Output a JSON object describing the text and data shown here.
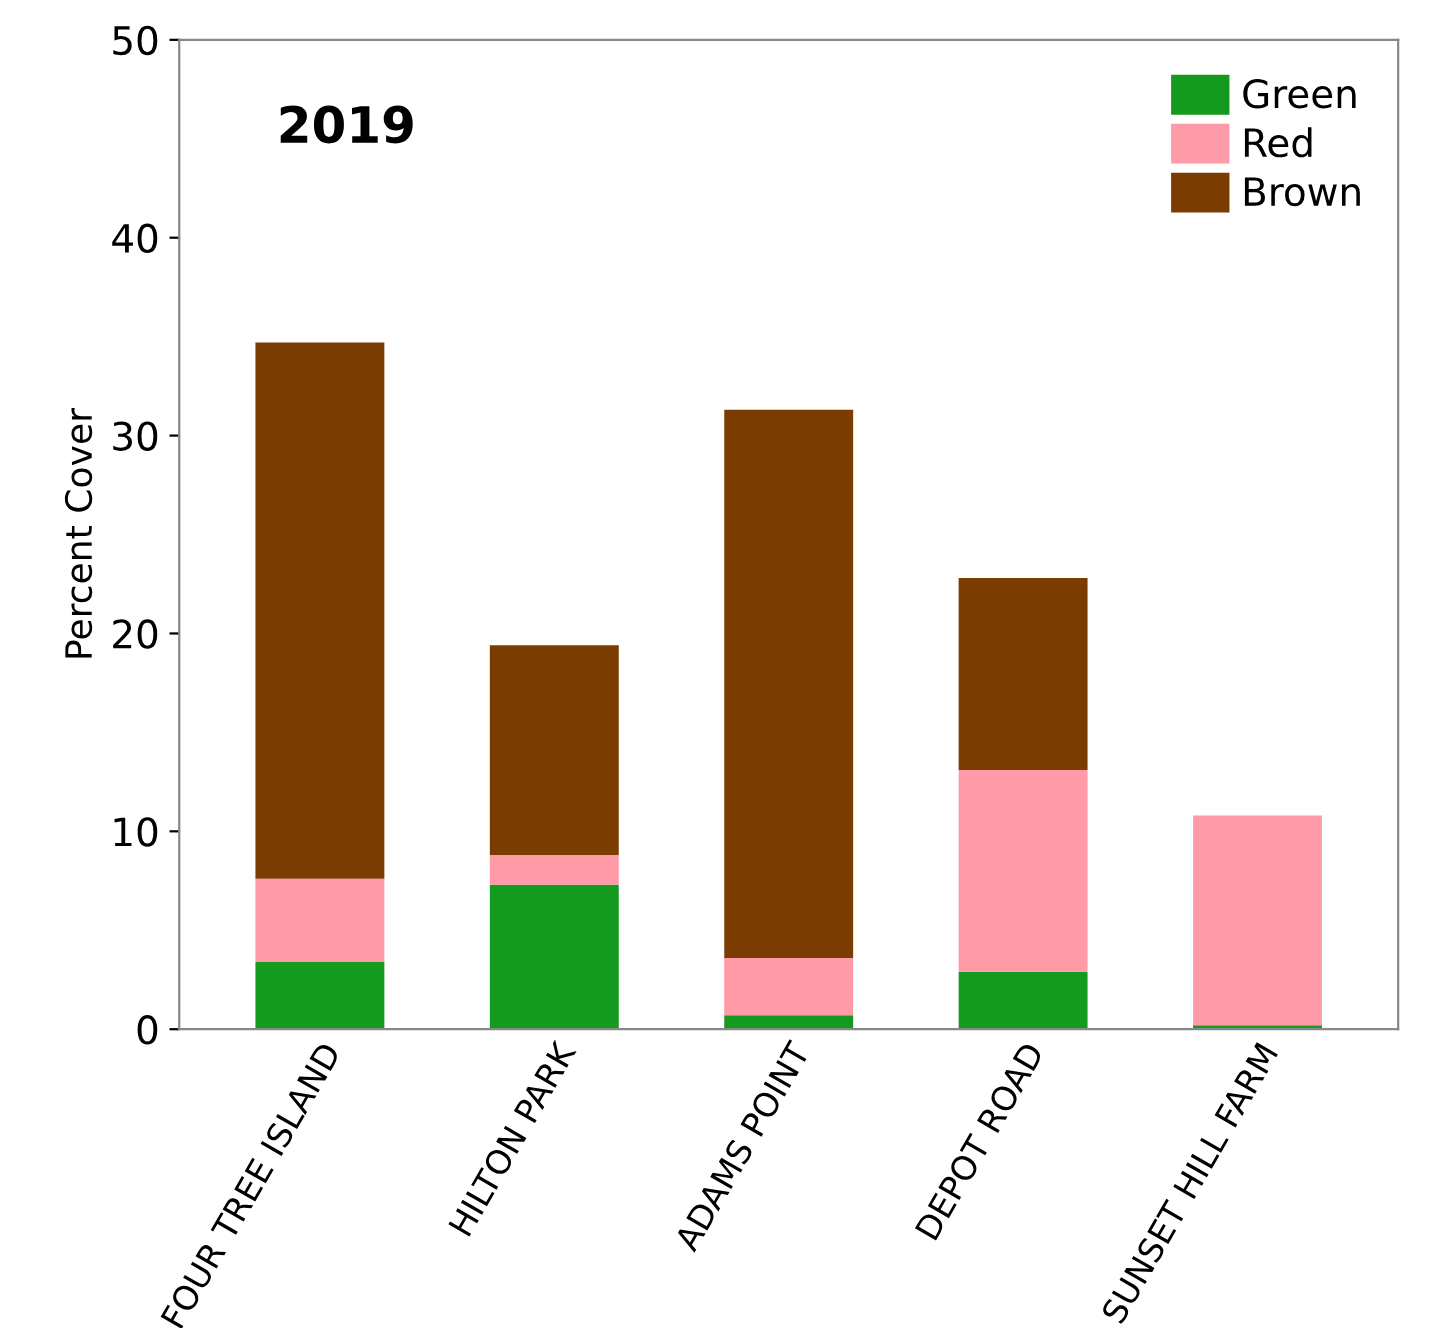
{
  "chart_data": {
    "type": "bar",
    "title": "2019",
    "ylabel": "Percent Cover",
    "categories": [
      "FOUR TREE ISLAND",
      "HILTON PARK",
      "ADAMS POINT",
      "DEPOT ROAD",
      "SUNSET HILL FARM"
    ],
    "stacked": true,
    "series": [
      {
        "name": "Green",
        "color": "#149a1e",
        "values": [
          3.4,
          7.3,
          0.7,
          2.9,
          0.2
        ]
      },
      {
        "name": "Red",
        "color": "#ff9aa8",
        "values": [
          4.2,
          1.5,
          2.9,
          10.2,
          10.6
        ]
      },
      {
        "name": "Brown",
        "color": "#7a3c00",
        "values": [
          27.1,
          10.6,
          27.7,
          9.7,
          0
        ]
      }
    ],
    "ylim": [
      0,
      50
    ],
    "yticks": [
      0,
      10,
      20,
      30,
      40,
      50
    ],
    "grid": false,
    "legend": "top right"
  }
}
